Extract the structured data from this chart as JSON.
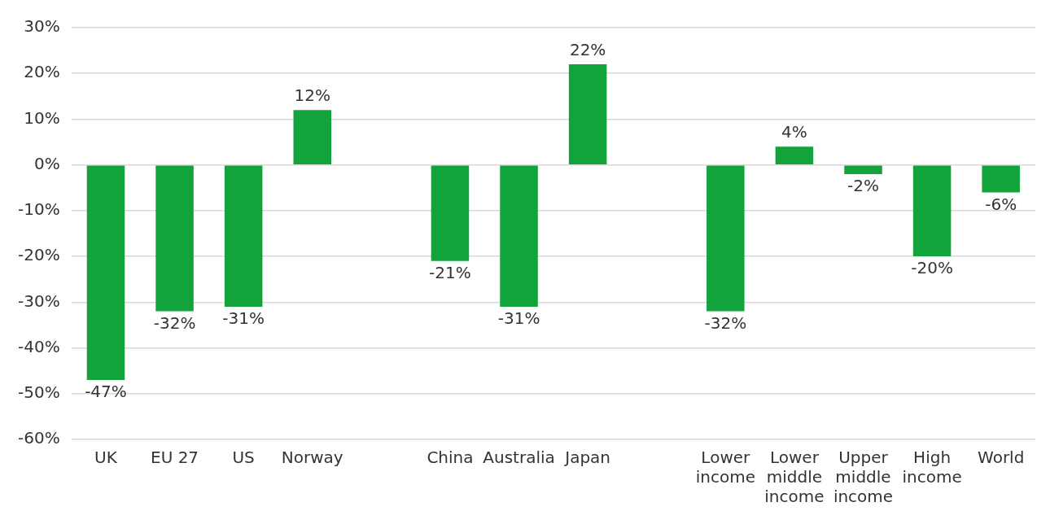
{
  "chart_data": {
    "type": "bar",
    "categories": [
      "UK",
      "EU 27",
      "US",
      "Norway",
      null,
      "China",
      "Australia",
      "Japan",
      null,
      "Lower income",
      "Lower middle income",
      "Upper middle income",
      "High income",
      "World"
    ],
    "values": [
      -47,
      -32,
      -31,
      12,
      null,
      -21,
      -31,
      22,
      null,
      -32,
      4,
      -2,
      -20,
      -6
    ],
    "value_labels": [
      "-47%",
      "-32%",
      "-31%",
      "12%",
      null,
      "-21%",
      "-31%",
      "22%",
      null,
      "-32%",
      "4%",
      "-2%",
      "-20%",
      "-6%"
    ],
    "color": "#12a33c",
    "ylim": [
      -60,
      30
    ],
    "yticks": [
      {
        "value": -60,
        "label": "-60%"
      },
      {
        "value": -50,
        "label": "-50%"
      },
      {
        "value": -40,
        "label": "-40%"
      },
      {
        "value": -30,
        "label": "-30%"
      },
      {
        "value": -20,
        "label": "-20%"
      },
      {
        "value": -10,
        "label": "-10%"
      },
      {
        "value": 0,
        "label": "0%"
      },
      {
        "value": 10,
        "label": "10%"
      },
      {
        "value": 20,
        "label": "20%"
      },
      {
        "value": 30,
        "label": "30%"
      }
    ],
    "grid": "y",
    "legend": false
  }
}
